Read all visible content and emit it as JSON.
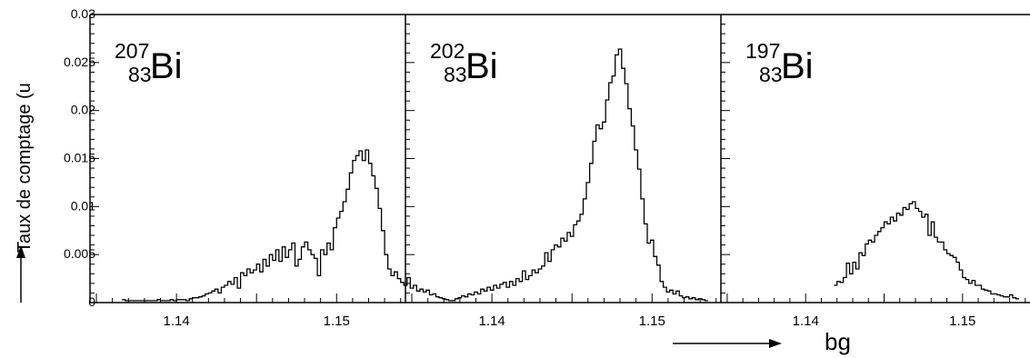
{
  "chart_data": [
    {
      "type": "histogram",
      "label": {
        "mass": "207",
        "charge": "83",
        "element": "Bi"
      },
      "xlabel": "bg",
      "ylabel": "Taux de comptage (u",
      "xlim": [
        1.1346,
        1.1543
      ],
      "ylim": [
        0,
        0.03
      ],
      "xticks": [
        1.14,
        1.15
      ],
      "xtick_labels": [
        "1.14",
        "1.15"
      ],
      "yticks": [
        0,
        0.005,
        0.01,
        0.015,
        0.02,
        0.025,
        0.03
      ],
      "ytick_labels": [
        "0",
        "0.005",
        "0.01",
        "0.015",
        "0.02",
        "0.025",
        "0.03"
      ],
      "grid": false,
      "bin_width": 0.0002,
      "x_start": 1.1366,
      "counts": [
        0.0003,
        0.0002,
        0.0002,
        0.0002,
        0.0002,
        0.0002,
        0.0002,
        0.0002,
        0.0002,
        0.0002,
        0.0002,
        0.0003,
        0.0002,
        0.0002,
        0.0002,
        0.0003,
        0.0002,
        0.0003,
        0.0003,
        0.0003,
        0.0002,
        0.0004,
        0.0005,
        0.0005,
        0.0006,
        0.0007,
        0.0009,
        0.001,
        0.0012,
        0.0014,
        0.001,
        0.0016,
        0.0018,
        0.0022,
        0.0019,
        0.0026,
        0.0015,
        0.0031,
        0.0028,
        0.0035,
        0.0031,
        0.0034,
        0.004,
        0.0032,
        0.0045,
        0.0038,
        0.005,
        0.0044,
        0.0055,
        0.0043,
        0.0058,
        0.0047,
        0.0055,
        0.0062,
        0.0038,
        0.0045,
        0.0058,
        0.0063,
        0.0055,
        0.005,
        0.0046,
        0.0028,
        0.0055,
        0.005,
        0.0062,
        0.0055,
        0.0078,
        0.0088,
        0.0095,
        0.0105,
        0.0118,
        0.0135,
        0.0148,
        0.0153,
        0.0158,
        0.0148,
        0.0159,
        0.0145,
        0.0132,
        0.0119,
        0.0098,
        0.0075,
        0.005,
        0.0035,
        0.0028,
        0.0032,
        0.0025,
        0.0021,
        0.0018,
        0.0026,
        0.0015,
        0.0018,
        0.0012,
        0.0014,
        0.0011,
        0.0013,
        0.0008,
        0.0009,
        0.0006,
        0.0005,
        0.0004,
        0.0003,
        0.0002,
        0.0002
      ]
    },
    {
      "type": "histogram",
      "label": {
        "mass": "202",
        "charge": "83",
        "element": "Bi"
      },
      "xlim": [
        1.1346,
        1.1543
      ],
      "ylim": [
        0,
        0.03
      ],
      "xticks": [
        1.14,
        1.15
      ],
      "xtick_labels": [
        "1.14",
        "1.15"
      ],
      "grid": false,
      "bin_width": 0.0002,
      "x_start": 1.1375,
      "counts": [
        0.0002,
        0.0004,
        0.0005,
        0.0007,
        0.0006,
        0.0009,
        0.0008,
        0.0011,
        0.0009,
        0.0014,
        0.0012,
        0.0016,
        0.0013,
        0.0018,
        0.0015,
        0.0019,
        0.0021,
        0.0016,
        0.0022,
        0.0018,
        0.0025,
        0.0022,
        0.0033,
        0.0024,
        0.0028,
        0.0034,
        0.0031,
        0.0035,
        0.0038,
        0.0052,
        0.0043,
        0.0055,
        0.006,
        0.0058,
        0.0067,
        0.0064,
        0.0073,
        0.0069,
        0.0081,
        0.0085,
        0.0092,
        0.0108,
        0.0125,
        0.0145,
        0.0168,
        0.0185,
        0.0181,
        0.0188,
        0.0211,
        0.0229,
        0.0236,
        0.0258,
        0.0264,
        0.0244,
        0.0228,
        0.0202,
        0.0184,
        0.0159,
        0.0139,
        0.0108,
        0.0082,
        0.0062,
        0.0065,
        0.0048,
        0.0039,
        0.0022,
        0.0016,
        0.0011,
        0.0013,
        0.0009,
        0.0012,
        0.0007,
        0.0005,
        0.0006,
        0.0004,
        0.0005,
        0.0003,
        0.0004,
        0.0003,
        0.0002
      ]
    },
    {
      "type": "histogram",
      "label": {
        "mass": "197",
        "charge": "83",
        "element": "Bi"
      },
      "xlim": [
        1.1346,
        1.1543
      ],
      "ylim": [
        0,
        0.03
      ],
      "xticks": [
        1.14,
        1.15
      ],
      "xtick_labels": [
        "1.14",
        "1.15"
      ],
      "grid": false,
      "bin_width": 0.0002,
      "x_start": 1.1418,
      "counts": [
        0.0018,
        0.0022,
        0.0021,
        0.0026,
        0.0041,
        0.003,
        0.0042,
        0.0035,
        0.0052,
        0.0049,
        0.0061,
        0.0065,
        0.0063,
        0.007,
        0.0074,
        0.0078,
        0.0084,
        0.0082,
        0.0089,
        0.0085,
        0.0093,
        0.0091,
        0.0099,
        0.0097,
        0.0103,
        0.0105,
        0.0098,
        0.0095,
        0.0089,
        0.0092,
        0.007,
        0.0084,
        0.0068,
        0.0063,
        0.0063,
        0.0055,
        0.0051,
        0.0049,
        0.0047,
        0.0042,
        0.0034,
        0.0026,
        0.0024,
        0.002,
        0.0023,
        0.0018,
        0.0018,
        0.0014,
        0.0013,
        0.0012,
        0.0009,
        0.0009,
        0.0008,
        0.0007,
        0.0006,
        0.0006,
        0.0008,
        0.0005,
        0.0004
      ]
    }
  ],
  "frame_color": "#000000",
  "line_color": "#000000",
  "arrows": [
    "y-axis-arrow",
    "x-axis-arrow"
  ]
}
